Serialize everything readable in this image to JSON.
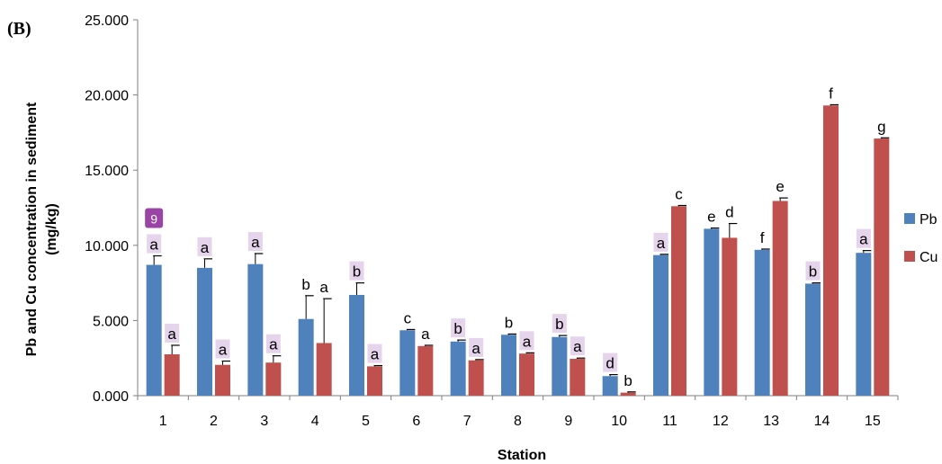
{
  "panel_label": "(B)",
  "colors": {
    "Pb": "#4f81bd",
    "Cu": "#c0504d",
    "axis": "#7f7f7f",
    "highlight": "#e6d3ec",
    "badge": "#9a45a6"
  },
  "badge": "9",
  "chart_data": {
    "type": "bar",
    "title": "",
    "xlabel": "Station",
    "ylabel": "Pb and Cu concentration in sediment",
    "ylabel_unit": "(mg/kg)",
    "ylim": [
      0,
      25
    ],
    "yticks": [
      "0.000",
      "5.000",
      "10.000",
      "15.000",
      "20.000",
      "25.000"
    ],
    "grid": false,
    "legend_position": "right",
    "categories": [
      "1",
      "2",
      "3",
      "4",
      "5",
      "6",
      "7",
      "8",
      "9",
      "10",
      "11",
      "12",
      "13",
      "14",
      "15"
    ],
    "series": [
      {
        "name": "Pb",
        "values": [
          8.7,
          8.5,
          8.75,
          5.1,
          6.7,
          4.35,
          3.6,
          4.05,
          3.9,
          1.3,
          9.35,
          11.1,
          9.7,
          7.45,
          9.5
        ],
        "errors": [
          0.6,
          0.6,
          0.7,
          1.55,
          0.8,
          0.05,
          0.1,
          0.05,
          0.1,
          0.1,
          0.05,
          0.05,
          0.05,
          0.05,
          0.15
        ],
        "sig_labels": [
          "a",
          "a",
          "a",
          "b",
          "b",
          "c",
          "b",
          "b",
          "b",
          "d",
          "a",
          "e",
          "f",
          "b",
          "a"
        ]
      },
      {
        "name": "Cu",
        "values": [
          2.75,
          2.05,
          2.2,
          3.5,
          1.95,
          3.3,
          2.35,
          2.8,
          2.45,
          0.2,
          12.6,
          10.5,
          12.95,
          19.3,
          17.1
        ],
        "errors": [
          0.6,
          0.25,
          0.45,
          2.95,
          0.05,
          0.05,
          0.05,
          0.05,
          0.05,
          0.05,
          0.05,
          0.95,
          0.2,
          0.05,
          0.05
        ],
        "sig_labels": [
          "a",
          "a",
          "a",
          "a",
          "a",
          "a",
          "a",
          "a",
          "a",
          "b",
          "c",
          "d",
          "e",
          "f",
          "g"
        ]
      }
    ],
    "highlighted_labels": {
      "Pb": [
        0,
        1,
        2,
        4,
        6,
        8,
        9,
        10,
        13,
        14
      ],
      "Cu": [
        0,
        1,
        2,
        4,
        6,
        7,
        8
      ]
    }
  }
}
